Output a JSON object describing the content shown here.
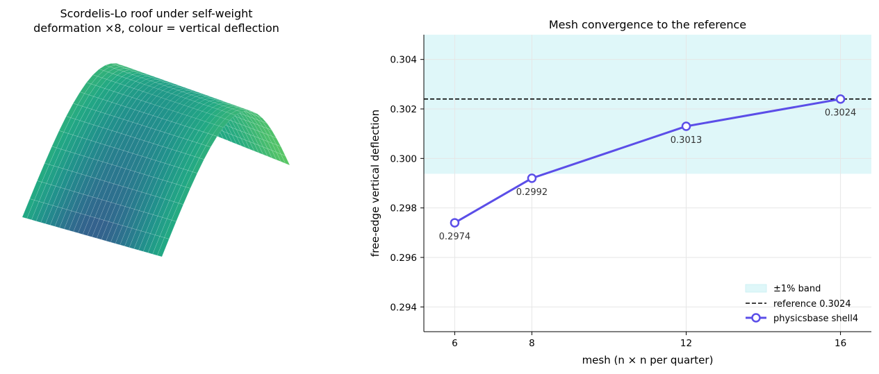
{
  "chart_data": [
    {
      "type": "surface3d",
      "title_lines": [
        "Scordelis-Lo roof under self-weight",
        "deformation ×8, colour = vertical deflection"
      ],
      "colormap": "viridis",
      "grid": false
    },
    {
      "type": "line",
      "title": "Mesh convergence to the reference",
      "xlabel": "mesh (n × n per quarter)",
      "ylabel": "free-edge vertical deflection",
      "x_ticks": [
        6,
        8,
        12,
        16
      ],
      "y_ticks": [
        "0.294",
        "0.296",
        "0.298",
        "0.300",
        "0.302",
        "0.304"
      ],
      "xlim": [
        5.2,
        16.8
      ],
      "ylim": [
        0.293,
        0.305
      ],
      "grid": true,
      "band": {
        "name": "±1% band",
        "range": [
          0.29938,
          0.305
        ],
        "color": "#dff7f9"
      },
      "reference": {
        "name": "reference 0.3024",
        "value": 0.3024,
        "color": "#000000"
      },
      "series": [
        {
          "name": "physicsbase shell4",
          "color": "#5b4ee8",
          "x": [
            6,
            8,
            12,
            16
          ],
          "y": [
            0.2974,
            0.2992,
            0.3013,
            0.3024
          ],
          "labels": [
            "0.2974",
            "0.2992",
            "0.3013",
            "0.3024"
          ]
        }
      ],
      "legend_position": "lower-right"
    }
  ]
}
